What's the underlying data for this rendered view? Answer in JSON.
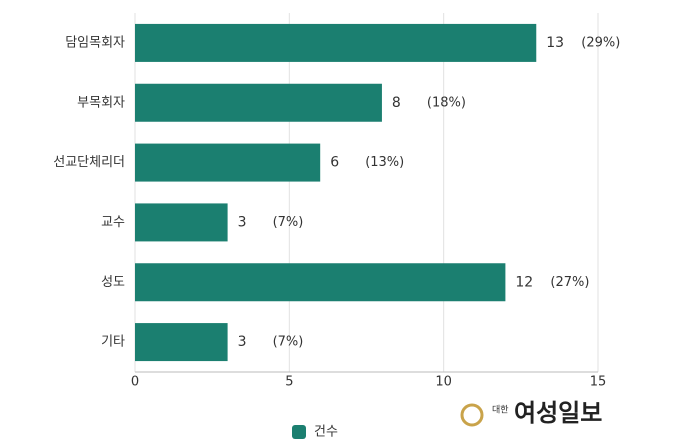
{
  "chart_data": {
    "type": "hbar",
    "categories": [
      "담임목회자",
      "부목회자",
      "선교단체리더",
      "교수",
      "성도",
      "기타"
    ],
    "series": [
      {
        "name": "건수",
        "color": "#1b7f70",
        "values": [
          13,
          8,
          6,
          3,
          12,
          3
        ]
      }
    ],
    "percent_labels": [
      "(29%)",
      "(18%)",
      "(13%)",
      "(7%)",
      "(27%)",
      "(7%)"
    ],
    "xlim": [
      0,
      15
    ],
    "xticks": [
      0,
      5,
      10,
      15
    ],
    "grid": true,
    "legend": "bottom"
  },
  "watermark": {
    "small": "대한",
    "name": "여성일보"
  }
}
